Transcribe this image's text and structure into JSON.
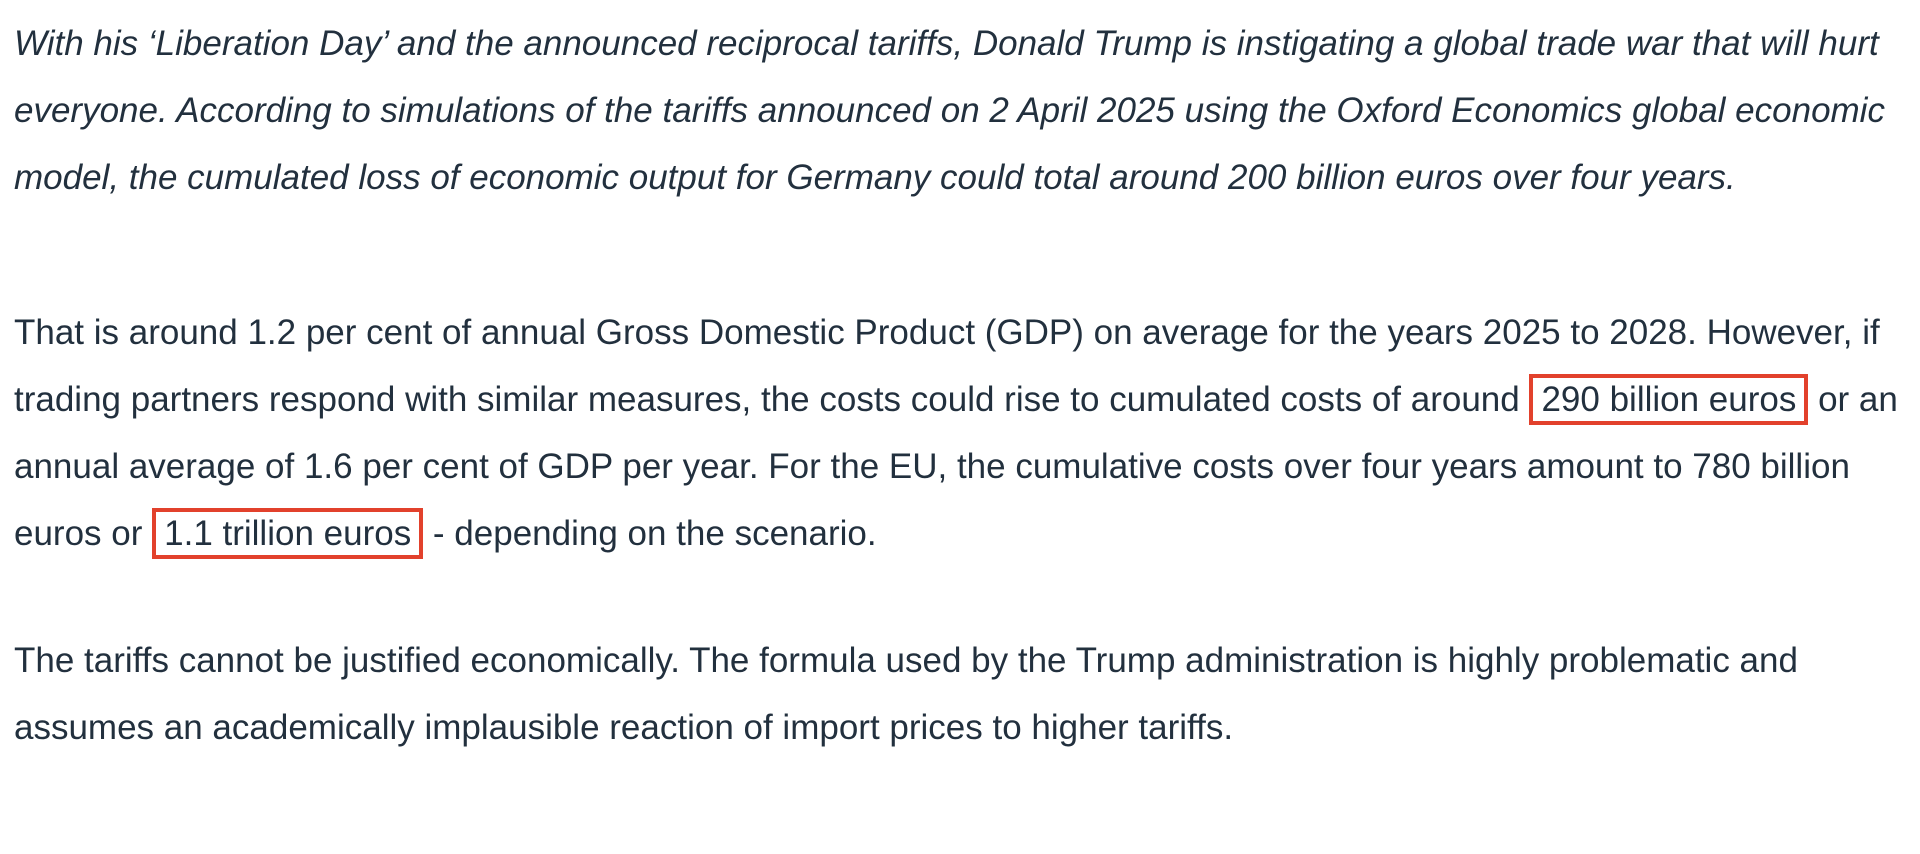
{
  "page": {
    "background": "#ffffff",
    "text_color": "#22303e",
    "highlight_border_color": "#e2412c"
  },
  "article": {
    "lead_paragraph": "With his ‘Liberation Day’ and the announced reciprocal tariffs, Donald Trump is instigating a global trade war that will hurt everyone. According to simulations of the tariffs announced on 2 April 2025 using the Oxford Economics global economic model, the cumulated loss of economic output for Germany could total around 200 billion euros over four years.",
    "paragraph_costs": {
      "segment_1": "That is around 1.2 per cent of annual Gross Domestic Product (GDP) on average for the years 2025 to 2028. However, if trading partners respond with similar measures, the costs could rise to cumulated costs of around ",
      "highlight_1": "290 billion euros",
      "segment_2": " or an annual average of 1.6 per cent of GDP per year. For the EU, the cumulative costs over four years amount to 780 billion euros or ",
      "highlight_2": "1.1 trillion euros",
      "segment_3": " - depending on the scenario."
    },
    "paragraph_formula": "The tariffs cannot be justified economically. The formula used by the Trump administration is highly problematic and assumes an academically implausible reaction of import prices to higher tariffs."
  }
}
